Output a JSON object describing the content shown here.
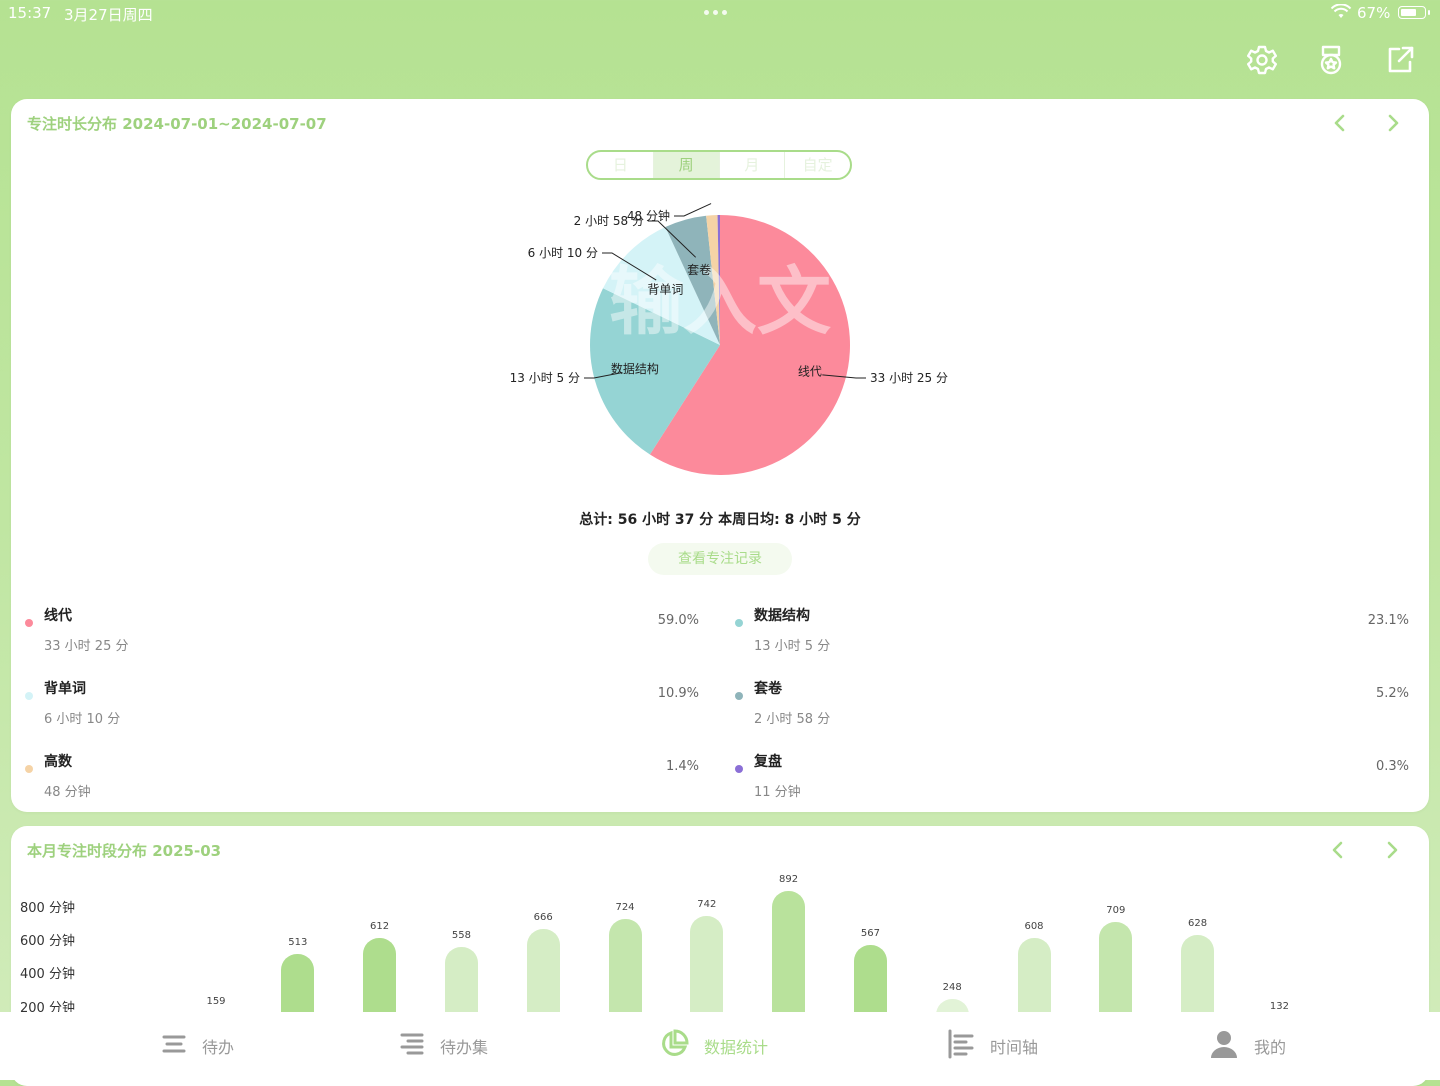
{
  "status_bar": {
    "time": "15:37",
    "date": "3月27日周四",
    "battery": "67%"
  },
  "top_actions": [
    "settings-icon",
    "medal-icon",
    "share-icon"
  ],
  "distribution": {
    "title": "专注时长分布 2024-07-01~2024-07-07",
    "segments": [
      "日",
      "周",
      "月",
      "自定"
    ],
    "active_segment": "周",
    "watermark": "输入文",
    "total": "总计: 56 小时 37 分  本周日均: 8 小时 5 分",
    "records_button": "查看专注记录",
    "items": [
      {
        "name": "线代",
        "duration": "33 小时 25 分",
        "percent": "59.0%",
        "value": 59.0,
        "color": "#fc8a9b"
      },
      {
        "name": "数据结构",
        "duration": "13 小时 5 分",
        "percent": "23.1%",
        "value": 23.1,
        "color": "#95d4d4"
      },
      {
        "name": "背单词",
        "duration": "6 小时 10 分",
        "percent": "10.9%",
        "value": 10.9,
        "color": "#d4f3f7"
      },
      {
        "name": "套卷",
        "duration": "2 小时 58 分",
        "percent": "5.2%",
        "value": 5.2,
        "color": "#8fb4ba"
      },
      {
        "name": "高数",
        "duration": "48 分钟",
        "percent": "1.4%",
        "value": 1.4,
        "color": "#f5d3a6"
      },
      {
        "name": "复盘",
        "duration": "11 分钟",
        "percent": "0.3%",
        "value": 0.3,
        "color": "#8b6fd6"
      }
    ]
  },
  "monthly": {
    "title": "本月专注时段分布  2025-03",
    "y_ticks": [
      "800 分钟",
      "600 分钟",
      "400 分钟",
      "200 分钟"
    ]
  },
  "chart_data": [
    {
      "type": "pie",
      "title": "专注时长分布 2024-07-01~2024-07-07",
      "labels": [
        "线代",
        "数据结构",
        "背单词",
        "套卷",
        "高数",
        "复盘"
      ],
      "values": [
        59.0,
        23.1,
        10.9,
        5.2,
        1.4,
        0.3
      ],
      "durations": [
        "33 小时 25 分",
        "13 小时 5 分",
        "6 小时 10 分",
        "2 小时 58 分",
        "48 分钟",
        "11 分钟"
      ]
    },
    {
      "type": "bar",
      "title": "本月专注时段分布  2025-03",
      "ylabel": "分钟",
      "ylim": [
        0,
        900
      ],
      "values": [
        159,
        513,
        612,
        558,
        666,
        724,
        742,
        892,
        567,
        248,
        608,
        709,
        628,
        132
      ],
      "shades": [
        "#e9f5e1",
        "#aedd8d",
        "#aedd8d",
        "#d5edc5",
        "#d5edc5",
        "#c4e6ad",
        "#d5edc5",
        "#b9e29c",
        "#aedd8d",
        "#e2f3d7",
        "#d5edc5",
        "#c4e6ad",
        "#d5edc5",
        "#e9f5e1"
      ]
    }
  ],
  "tabs": [
    {
      "label": "待办",
      "icon": "todo-icon"
    },
    {
      "label": "待办集",
      "icon": "todo-set-icon"
    },
    {
      "label": "数据统计",
      "icon": "stats-icon"
    },
    {
      "label": "时间轴",
      "icon": "timeline-icon"
    },
    {
      "label": "我的",
      "icon": "profile-icon"
    }
  ],
  "active_tab": "数据统计"
}
